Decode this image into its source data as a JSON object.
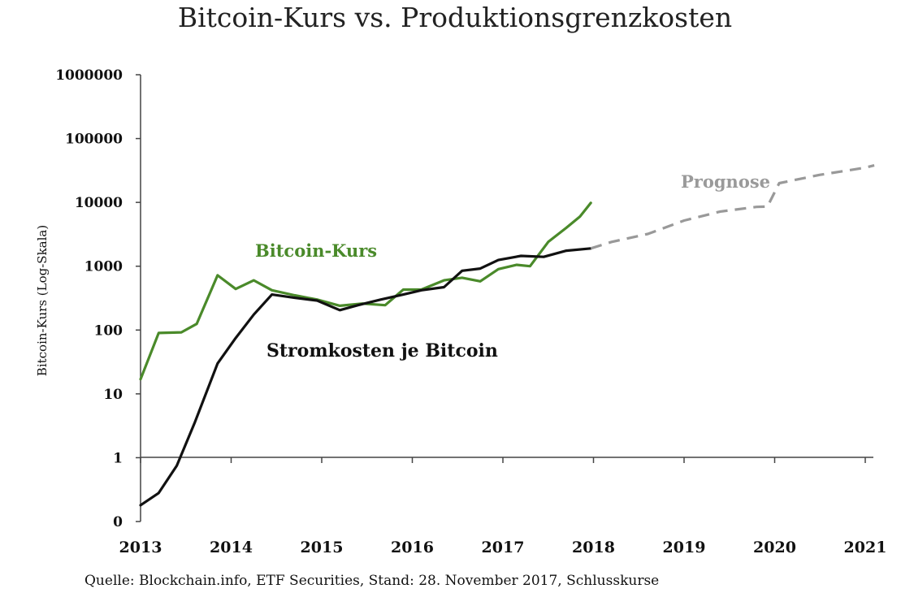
{
  "chart_data": {
    "type": "line",
    "title": "Bitcoin-Kurs vs. Produktionsgrenzkosten",
    "ylabel": "Bitcoin-Kurs (Log-Skala)",
    "xlabel": "",
    "yscale": "log",
    "ylim": [
      0.1,
      1000000
    ],
    "xlim": [
      2013,
      2021
    ],
    "y_ticks": [
      {
        "value": 0.1,
        "label": "0"
      },
      {
        "value": 1,
        "label": "1"
      },
      {
        "value": 10,
        "label": "10"
      },
      {
        "value": 100,
        "label": "100"
      },
      {
        "value": 1000,
        "label": "1000"
      },
      {
        "value": 10000,
        "label": "10000"
      },
      {
        "value": 100000,
        "label": "100000"
      },
      {
        "value": 1000000,
        "label": "1000000"
      }
    ],
    "x_ticks": [
      {
        "value": 2013,
        "label": "2013"
      },
      {
        "value": 2014,
        "label": "2014"
      },
      {
        "value": 2015,
        "label": "2015"
      },
      {
        "value": 2016,
        "label": "2016"
      },
      {
        "value": 2017,
        "label": "2017"
      },
      {
        "value": 2018,
        "label": "2018"
      },
      {
        "value": 2019,
        "label": "2019"
      },
      {
        "value": 2020,
        "label": "2020"
      },
      {
        "value": 2021,
        "label": "2021"
      }
    ],
    "series": [
      {
        "name": "Bitcoin-Kurs",
        "color": "#4a8a2a",
        "style": "solid",
        "x": [
          2013.0,
          2013.2,
          2013.45,
          2013.62,
          2013.85,
          2014.05,
          2014.25,
          2014.45,
          2014.7,
          2014.95,
          2015.2,
          2015.45,
          2015.7,
          2015.9,
          2016.1,
          2016.35,
          2016.55,
          2016.75,
          2016.95,
          2017.15,
          2017.3,
          2017.5,
          2017.7,
          2017.85,
          2017.97
        ],
        "values": [
          17,
          90,
          92,
          125,
          720,
          440,
          600,
          420,
          350,
          300,
          240,
          260,
          245,
          430,
          430,
          600,
          660,
          580,
          900,
          1050,
          1000,
          2400,
          4000,
          6000,
          9800
        ]
      },
      {
        "name": "Stromkosten je Bitcoin",
        "color": "#111111",
        "style": "solid",
        "x": [
          2013.0,
          2013.2,
          2013.4,
          2013.6,
          2013.85,
          2014.05,
          2014.25,
          2014.45,
          2014.7,
          2014.95,
          2015.2,
          2015.4,
          2015.65,
          2015.9,
          2016.1,
          2016.35,
          2016.55,
          2016.75,
          2016.95,
          2017.2,
          2017.45,
          2017.7,
          2017.97
        ],
        "values": [
          0.18,
          0.28,
          0.75,
          3.6,
          30,
          75,
          175,
          360,
          320,
          290,
          205,
          245,
          300,
          360,
          420,
          470,
          850,
          920,
          1250,
          1450,
          1400,
          1750,
          1900
        ]
      },
      {
        "name": "Prognose",
        "color": "#999999",
        "style": "dashed",
        "x": [
          2017.97,
          2018.2,
          2018.6,
          2019.0,
          2019.4,
          2019.8,
          2019.92,
          2020.05,
          2020.5,
          2021.0,
          2021.1
        ],
        "values": [
          1900,
          2400,
          3200,
          5200,
          7200,
          8500,
          8600,
          20000,
          27000,
          35000,
          38000
        ]
      }
    ],
    "annotations": [
      {
        "series": "Bitcoin-Kurs",
        "text": "Bitcoin-Kurs"
      },
      {
        "series": "Stromkosten je Bitcoin",
        "text": "Stromkosten je Bitcoin"
      },
      {
        "series": "Prognose",
        "text": "Prognose"
      }
    ]
  },
  "source_note": "Quelle: Blockchain.info, ETF Securities, Stand: 28. November 2017, Schlusskurse"
}
